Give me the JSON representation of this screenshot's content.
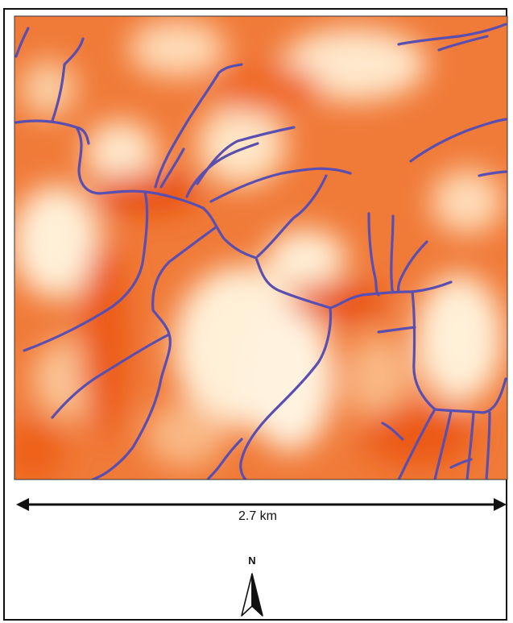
{
  "map": {
    "type": "drainage-network-over-terrain",
    "colors": {
      "low_terrain": "#ee5a14",
      "mid_terrain": "#f7a46a",
      "high_terrain": "#fff0d8",
      "stream": "#5a4fb0",
      "frame": "#111111"
    }
  },
  "scale_bar": {
    "label": "2.7 km"
  },
  "north_arrow": {
    "label": "N",
    "icon": "north-arrow-icon"
  }
}
